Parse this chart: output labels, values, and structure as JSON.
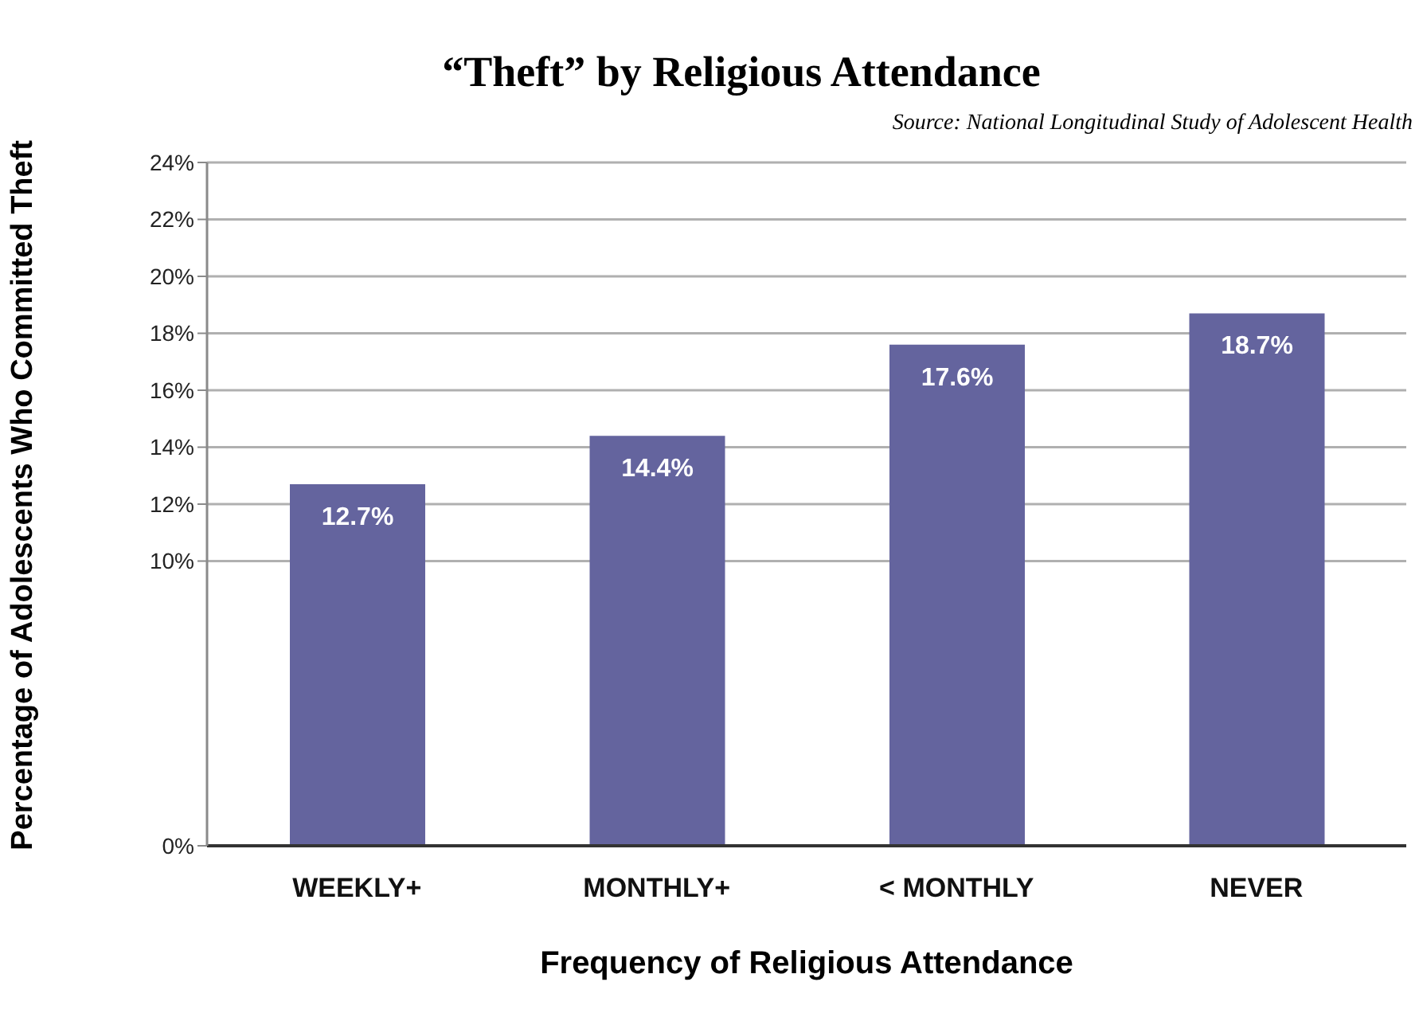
{
  "chart_data": {
    "type": "bar",
    "title": "“Theft” by Religious Attendance",
    "annotations": [
      "Source: National Longitudinal Study of Adolescent Health"
    ],
    "xlabel": "Frequency of Religious Attendance",
    "ylabel": "Percentage of Adolescents Who Committed Theft",
    "categories": [
      "WEEKLY+",
      "MONTHLY+",
      "< MONTHLY",
      "NEVER"
    ],
    "values": [
      12.7,
      14.4,
      17.6,
      18.7
    ],
    "value_labels": [
      "12.7%",
      "14.4%",
      "17.6%",
      "18.7%"
    ],
    "color": "#64649e",
    "ylim": [
      0,
      24
    ],
    "yticks": [
      {
        "value": 0,
        "label": "0%"
      },
      {
        "value": 10,
        "label": "10%"
      },
      {
        "value": 12,
        "label": "12%"
      },
      {
        "value": 14,
        "label": "14%"
      },
      {
        "value": 16,
        "label": "16%"
      },
      {
        "value": 18,
        "label": "18%"
      },
      {
        "value": 20,
        "label": "20%"
      },
      {
        "value": 22,
        "label": "22%"
      },
      {
        "value": 24,
        "label": "24%"
      }
    ],
    "grid": "y"
  }
}
